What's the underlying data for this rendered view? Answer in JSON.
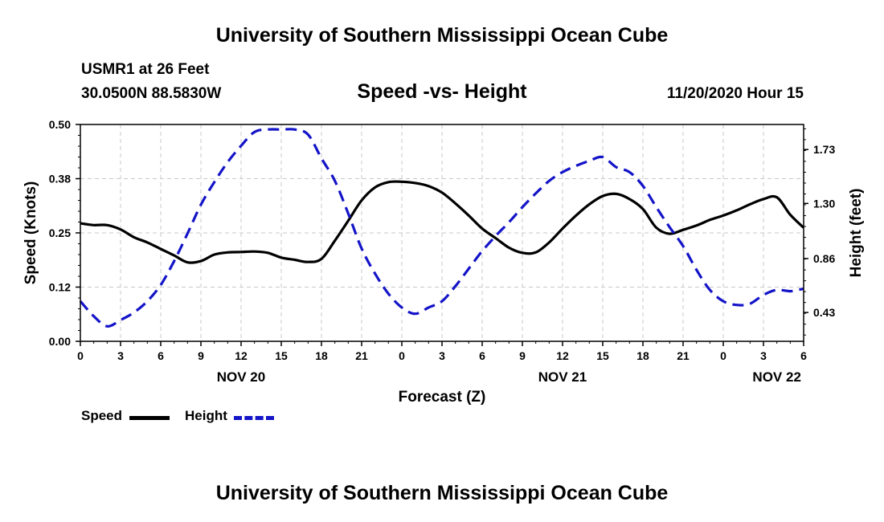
{
  "header": {
    "title": "University of Southern Mississippi Ocean Cube",
    "station": "USMR1 at 26 Feet",
    "coords": "30.0500N 88.5830W",
    "subtitle": "Speed -vs- Height",
    "datetime": "11/20/2020 Hour 15"
  },
  "footer": {
    "title": "University of Southern Mississippi Ocean Cube"
  },
  "legend": {
    "speed_label": "Speed",
    "height_label": "Height"
  },
  "colors": {
    "speed": "#000000",
    "height": "#1414c8",
    "grid": "#c8c8c8"
  },
  "chart_data": {
    "type": "line",
    "title": "Speed -vs- Height",
    "xlabel": "Forecast (Z)",
    "ylabel": "Speed (Knots)",
    "y2label": "Height (feet)",
    "xlim": [
      0,
      54
    ],
    "ylim": [
      0,
      0.5
    ],
    "y2lim": [
      0.2,
      1.93
    ],
    "grid": true,
    "x_ticks": [
      0,
      3,
      6,
      9,
      12,
      15,
      18,
      21,
      24,
      27,
      30,
      33,
      36,
      39,
      42,
      45,
      48,
      51,
      54
    ],
    "x_tick_labels": [
      "0",
      "3",
      "6",
      "9",
      "12",
      "15",
      "18",
      "21",
      "0",
      "3",
      "6",
      "9",
      "12",
      "15",
      "18",
      "21",
      "0",
      "3",
      "6"
    ],
    "y_ticks": [
      0,
      0.125,
      0.25,
      0.375,
      0.5
    ],
    "y_tick_labels": [
      "0.00",
      "0.12",
      "0.25",
      "0.38",
      "0.50"
    ],
    "y2_ticks": [
      0.43,
      0.86,
      1.3,
      1.73
    ],
    "y2_tick_labels": [
      "0.43",
      "0.86",
      "1.30",
      "1.73"
    ],
    "date_labels": [
      {
        "x": 12,
        "label": "NOV 20"
      },
      {
        "x": 36,
        "label": "NOV 21"
      },
      {
        "x": 52,
        "label": "NOV 22"
      }
    ],
    "series": [
      {
        "name": "Speed",
        "axis": "left",
        "x": [
          0,
          1,
          2,
          3,
          4,
          5,
          6,
          7,
          8,
          9,
          10,
          11,
          12,
          13,
          14,
          15,
          16,
          17,
          18,
          19,
          20,
          21,
          22,
          23,
          24,
          25,
          26,
          27,
          28,
          29,
          30,
          31,
          32,
          33,
          34,
          35,
          36,
          37,
          38,
          39,
          40,
          41,
          42,
          43,
          44,
          45,
          46,
          47,
          48,
          49,
          50,
          51,
          52,
          53,
          54
        ],
        "values": [
          0.272,
          0.268,
          0.268,
          0.258,
          0.24,
          0.228,
          0.213,
          0.198,
          0.182,
          0.185,
          0.2,
          0.205,
          0.206,
          0.207,
          0.204,
          0.193,
          0.188,
          0.183,
          0.19,
          0.232,
          0.278,
          0.325,
          0.355,
          0.367,
          0.368,
          0.365,
          0.358,
          0.343,
          0.318,
          0.29,
          0.26,
          0.238,
          0.216,
          0.204,
          0.205,
          0.228,
          0.26,
          0.29,
          0.316,
          0.335,
          0.34,
          0.328,
          0.305,
          0.262,
          0.248,
          0.257,
          0.267,
          0.28,
          0.29,
          0.302,
          0.316,
          0.328,
          0.332,
          0.292,
          0.262
        ]
      },
      {
        "name": "Height",
        "axis": "right",
        "x": [
          0,
          1,
          2,
          3,
          4,
          5,
          6,
          7,
          8,
          9,
          10,
          11,
          12,
          13,
          14,
          15,
          16,
          17,
          18,
          19,
          20,
          21,
          22,
          23,
          24,
          25,
          26,
          27,
          28,
          29,
          30,
          31,
          32,
          33,
          34,
          35,
          36,
          37,
          38,
          39,
          40,
          41,
          42,
          43,
          44,
          45,
          46,
          47,
          48,
          49,
          50,
          51,
          52,
          53,
          54
        ],
        "values": [
          0.52,
          0.4,
          0.32,
          0.37,
          0.43,
          0.52,
          0.65,
          0.84,
          1.06,
          1.29,
          1.47,
          1.63,
          1.76,
          1.87,
          1.89,
          1.89,
          1.89,
          1.85,
          1.66,
          1.48,
          1.22,
          0.94,
          0.74,
          0.58,
          0.47,
          0.42,
          0.47,
          0.52,
          0.64,
          0.78,
          0.92,
          1.04,
          1.15,
          1.27,
          1.38,
          1.48,
          1.55,
          1.6,
          1.64,
          1.67,
          1.59,
          1.55,
          1.44,
          1.27,
          1.11,
          0.96,
          0.77,
          0.61,
          0.52,
          0.49,
          0.5,
          0.57,
          0.61,
          0.6,
          0.62
        ]
      }
    ]
  }
}
